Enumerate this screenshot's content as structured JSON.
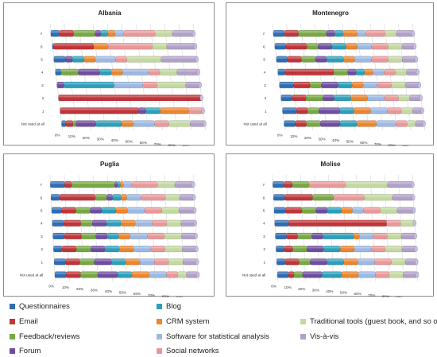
{
  "colors": {
    "Questionnaires": "#2e6db4",
    "Email": "#c0353a",
    "Feedback/reviews": "#77a843",
    "Forum": "#6e4ea0",
    "Blog": "#2e9fb8",
    "CRM system": "#ea8530",
    "Software for statistical analysis": "#9cb9e3",
    "Social networks": "#e99899",
    "Traditional tools (guest book, and so on)": "#c3d9a0",
    "Vis-à-vis": "#b1a0c8"
  },
  "legend": {
    "items": [
      {
        "label": "Questionnaires",
        "key": "Questionnaires"
      },
      {
        "label": "Blog",
        "key": "Blog"
      },
      {
        "label": "Email",
        "key": "Email"
      },
      {
        "label": "CRM system",
        "key": "CRM system"
      },
      {
        "label": "Traditional tools (guest book, and so on)",
        "key": "Traditional tools (guest book, and so on)"
      },
      {
        "label": "Feedback/reviews",
        "key": "Feedback/reviews"
      },
      {
        "label": "Software for statistical analysis",
        "key": "Software for statistical analysis"
      },
      {
        "label": "Vis-à-vis",
        "key": "Vis-à-vis"
      },
      {
        "label": "Forum",
        "key": "Forum"
      },
      {
        "label": "Social networks",
        "key": "Social networks"
      }
    ]
  },
  "chart_data": [
    {
      "type": "bar",
      "title": "Albania",
      "orientation": "horizontal",
      "stacked": "percent",
      "categories": [
        "Not used at all",
        "1",
        "2",
        "3",
        "4",
        "5",
        "6",
        "7"
      ],
      "x_ticks": [
        "0%",
        "10%",
        "20%",
        "30%",
        "40%",
        "50%",
        "60%",
        "70%",
        "80%",
        "90%",
        "100%"
      ],
      "xlim": [
        0,
        100
      ],
      "series": [
        {
          "name": "Questionnaires",
          "values": [
            3,
            0,
            0,
            0,
            4,
            8,
            1,
            6
          ]
        },
        {
          "name": "Email",
          "values": [
            5,
            55,
            100,
            0,
            0,
            0,
            28,
            10
          ]
        },
        {
          "name": "Feedback/reviews",
          "values": [
            2,
            0,
            0,
            0,
            12,
            0,
            0,
            15
          ]
        },
        {
          "name": "Forum",
          "values": [
            14,
            5,
            0,
            5,
            15,
            5,
            0,
            4
          ]
        },
        {
          "name": "Blog",
          "values": [
            18,
            10,
            0,
            35,
            8,
            8,
            0,
            5
          ]
        },
        {
          "name": "CRM system",
          "values": [
            8,
            20,
            0,
            0,
            8,
            8,
            10,
            5
          ]
        },
        {
          "name": "Software for statistical analysis",
          "values": [
            15,
            0,
            0,
            20,
            18,
            14,
            0,
            6
          ]
        },
        {
          "name": "Social networks",
          "values": [
            10,
            10,
            0,
            10,
            8,
            8,
            31,
            22
          ]
        },
        {
          "name": "Traditional tools (guest book, and so on)",
          "values": [
            15,
            0,
            0,
            20,
            12,
            24,
            10,
            12
          ]
        },
        {
          "name": "Vis-à-vis",
          "values": [
            10,
            0,
            0,
            10,
            15,
            25,
            20,
            15
          ]
        }
      ]
    },
    {
      "type": "bar",
      "title": "Montenegro",
      "orientation": "horizontal",
      "stacked": "percent",
      "categories": [
        "Not used at all",
        "1",
        "2",
        "3",
        "4",
        "5",
        "6",
        "7"
      ],
      "x_ticks": [
        "0%",
        "10%",
        "20%",
        "30%",
        "40%",
        "50%",
        "60%",
        "70%",
        "80%",
        "90%",
        "100%"
      ],
      "xlim": [
        0,
        100
      ],
      "series": [
        {
          "name": "Questionnaires",
          "values": [
            8,
            10,
            8,
            10,
            5,
            8,
            8,
            8
          ]
        },
        {
          "name": "Email",
          "values": [
            8,
            8,
            10,
            12,
            35,
            10,
            15,
            10
          ]
        },
        {
          "name": "Feedback/reviews",
          "values": [
            10,
            8,
            12,
            8,
            10,
            10,
            8,
            20
          ]
        },
        {
          "name": "Forum",
          "values": [
            14,
            15,
            8,
            12,
            6,
            8,
            10,
            6
          ]
        },
        {
          "name": "Blog",
          "values": [
            12,
            10,
            12,
            10,
            6,
            12,
            10,
            6
          ]
        },
        {
          "name": "CRM system",
          "values": [
            14,
            12,
            12,
            8,
            6,
            8,
            8,
            10
          ]
        },
        {
          "name": "Software for statistical analysis",
          "values": [
            14,
            12,
            12,
            10,
            8,
            12,
            10,
            6
          ]
        },
        {
          "name": "Social networks",
          "values": [
            8,
            10,
            10,
            10,
            8,
            12,
            12,
            14
          ]
        },
        {
          "name": "Traditional tools (guest book, and so on)",
          "values": [
            6,
            8,
            8,
            10,
            8,
            10,
            10,
            8
          ]
        },
        {
          "name": "Vis-à-vis",
          "values": [
            6,
            7,
            8,
            10,
            8,
            10,
            9,
            12
          ]
        }
      ]
    },
    {
      "type": "bar",
      "title": "Puglia",
      "orientation": "horizontal",
      "stacked": "percent",
      "categories": [
        "Not used at all",
        "1",
        "2",
        "3",
        "4",
        "5",
        "6",
        "7"
      ],
      "x_ticks": [
        "0%",
        "10%",
        "20%",
        "30%",
        "40%",
        "50%",
        "60%",
        "70%",
        "80%",
        "90%",
        "100%"
      ],
      "xlim": [
        0,
        100
      ],
      "series": [
        {
          "name": "Questionnaires",
          "values": [
            8,
            8,
            6,
            8,
            8,
            7,
            6,
            10
          ]
        },
        {
          "name": "Email",
          "values": [
            10,
            10,
            10,
            12,
            12,
            10,
            25,
            5
          ]
        },
        {
          "name": "Feedback/reviews",
          "values": [
            12,
            10,
            10,
            10,
            8,
            10,
            8,
            30
          ]
        },
        {
          "name": "Forum",
          "values": [
            14,
            12,
            10,
            8,
            10,
            8,
            4,
            2
          ]
        },
        {
          "name": "Blog",
          "values": [
            10,
            10,
            10,
            8,
            10,
            10,
            6,
            2
          ]
        },
        {
          "name": "CRM system",
          "values": [
            12,
            10,
            10,
            8,
            10,
            8,
            4,
            2
          ]
        },
        {
          "name": "Software for statistical analysis",
          "values": [
            12,
            10,
            12,
            12,
            12,
            12,
            10,
            6
          ]
        },
        {
          "name": "Social networks",
          "values": [
            8,
            10,
            10,
            12,
            10,
            12,
            17,
            18
          ]
        },
        {
          "name": "Traditional tools (guest book, and so on)",
          "values": [
            6,
            10,
            12,
            12,
            10,
            12,
            10,
            12
          ]
        },
        {
          "name": "Vis-à-vis",
          "values": [
            8,
            10,
            10,
            10,
            10,
            11,
            10,
            13
          ]
        }
      ]
    },
    {
      "type": "bar",
      "title": "Molise",
      "orientation": "horizontal",
      "stacked": "percent",
      "categories": [
        "Not used at all",
        "1",
        "2",
        "3",
        "4",
        "5",
        "6",
        "7"
      ],
      "x_ticks": [
        "0%",
        "10%",
        "20%",
        "30%",
        "40%",
        "50%",
        "60%",
        "70%",
        "80%",
        "90%",
        "100%"
      ],
      "xlim": [
        0,
        100
      ],
      "series": [
        {
          "name": "Questionnaires",
          "values": [
            8,
            6,
            6,
            8,
            10,
            8,
            8,
            8
          ]
        },
        {
          "name": "Email",
          "values": [
            4,
            10,
            6,
            8,
            70,
            12,
            20,
            6
          ]
        },
        {
          "name": "Feedback/reviews",
          "values": [
            6,
            8,
            10,
            10,
            0,
            10,
            15,
            12
          ]
        },
        {
          "name": "Forum",
          "values": [
            14,
            12,
            12,
            8,
            0,
            8,
            0,
            0
          ]
        },
        {
          "name": "Blog",
          "values": [
            14,
            12,
            12,
            22,
            0,
            10,
            0,
            0
          ]
        },
        {
          "name": "CRM system",
          "values": [
            12,
            10,
            10,
            4,
            0,
            8,
            0,
            0
          ]
        },
        {
          "name": "Software for statistical analysis",
          "values": [
            12,
            12,
            12,
            10,
            0,
            8,
            0,
            0
          ]
        },
        {
          "name": "Social networks",
          "values": [
            10,
            12,
            10,
            10,
            10,
            12,
            22,
            26
          ]
        },
        {
          "name": "Traditional tools (guest book, and so on)",
          "values": [
            10,
            10,
            12,
            10,
            10,
            12,
            20,
            30
          ]
        },
        {
          "name": "Vis-à-vis",
          "values": [
            10,
            8,
            10,
            10,
            0,
            12,
            15,
            18
          ]
        }
      ]
    }
  ]
}
